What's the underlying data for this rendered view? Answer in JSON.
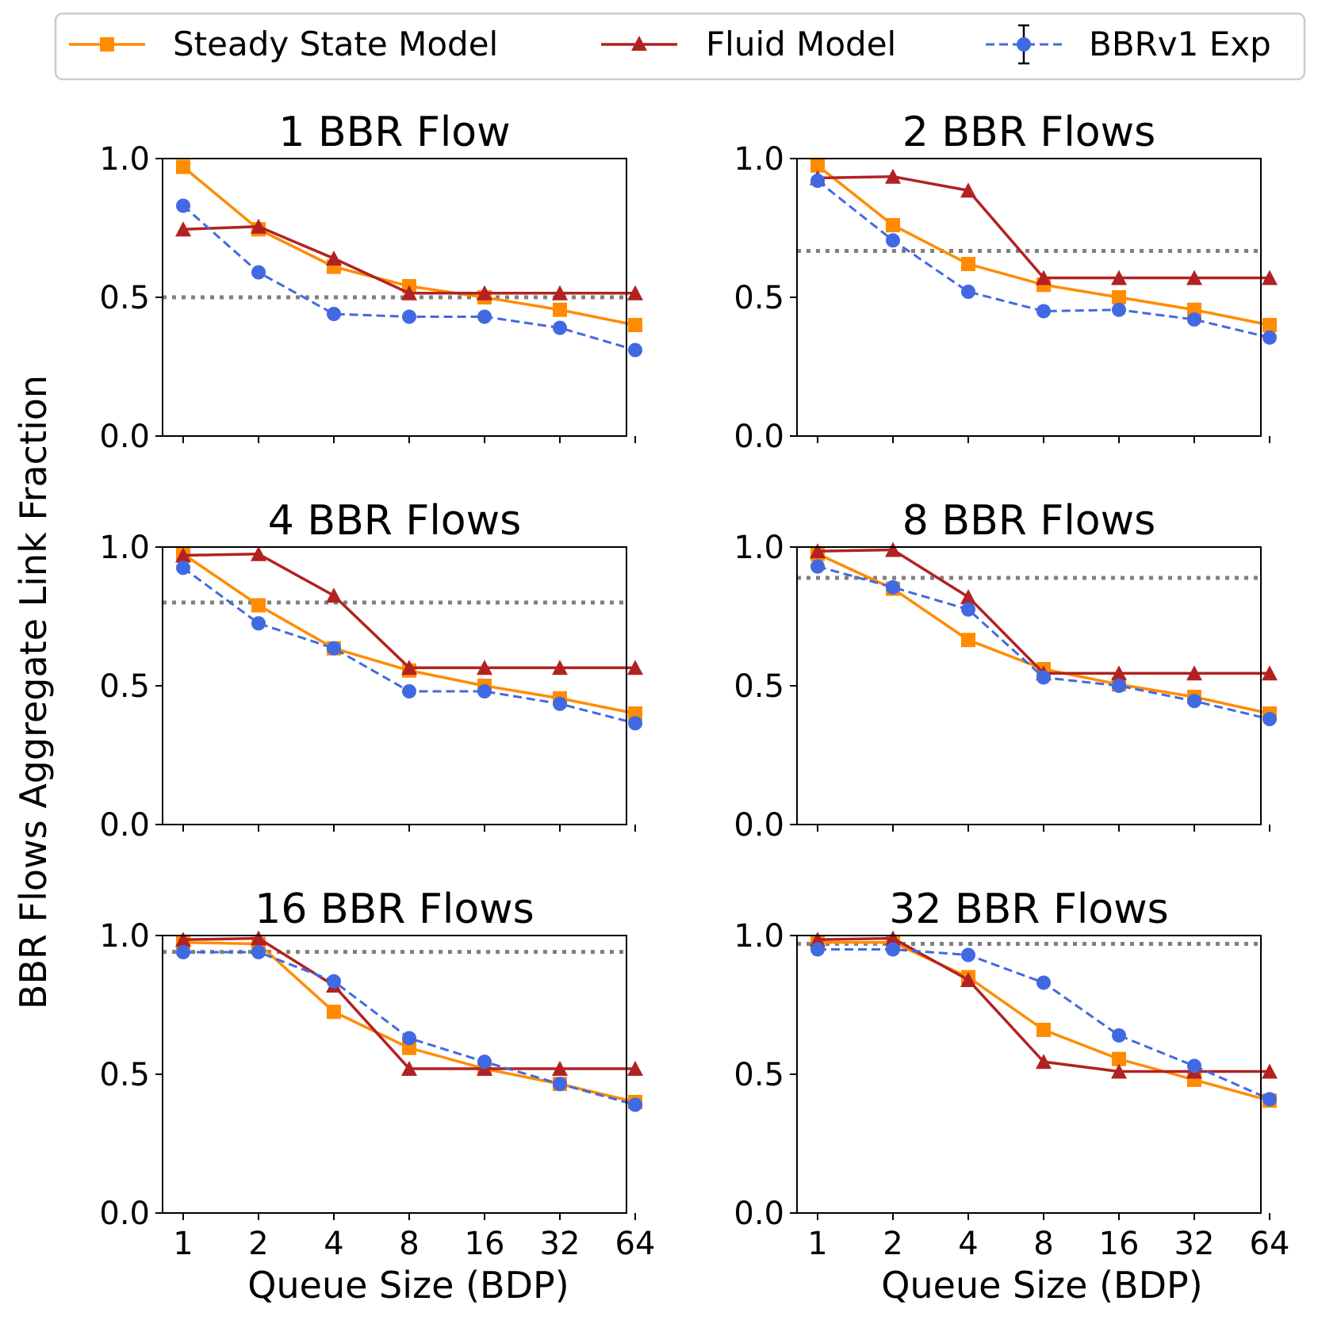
{
  "figure": {
    "ylabel": "BBR Flows Aggregate Link Fraction",
    "xlabel": "Queue Size (BDP)"
  },
  "legend": {
    "placement": "top",
    "entries": [
      {
        "key": "steady",
        "label": "Steady State Model"
      },
      {
        "key": "fluid",
        "label": "Fluid Model"
      },
      {
        "key": "bbr",
        "label": "BBRv1 Exp"
      }
    ]
  },
  "colors": {
    "steady": "#ff8c00",
    "fluid": "#b22222",
    "bbr": "#4169e1",
    "reference": "#808080"
  },
  "chart_data": [
    {
      "type": "line",
      "title": "1 BBR Flow",
      "categories": [
        "1",
        "2",
        "4",
        "8",
        "16",
        "32",
        "64"
      ],
      "ylim": [
        0,
        1
      ],
      "yticks": [
        "0.0",
        "0.5",
        "1.0"
      ],
      "reference_line": 0.5,
      "series": [
        {
          "key": "steady",
          "name": "Steady State Model",
          "values": [
            0.97,
            0.745,
            0.61,
            0.54,
            0.5,
            0.455,
            0.4
          ]
        },
        {
          "key": "fluid",
          "name": "Fluid Model",
          "values": [
            0.745,
            0.755,
            0.64,
            0.515,
            0.515,
            0.515,
            0.515
          ]
        },
        {
          "key": "bbr",
          "name": "BBRv1 Exp",
          "values": [
            0.83,
            0.59,
            0.44,
            0.43,
            0.43,
            0.39,
            0.31
          ]
        }
      ]
    },
    {
      "type": "line",
      "title": "2 BBR Flows",
      "categories": [
        "1",
        "2",
        "4",
        "8",
        "16",
        "32",
        "64"
      ],
      "ylim": [
        0,
        1
      ],
      "yticks": [
        "0.0",
        "0.5",
        "1.0"
      ],
      "reference_line": 0.667,
      "series": [
        {
          "key": "steady",
          "name": "Steady State Model",
          "values": [
            0.975,
            0.76,
            0.62,
            0.545,
            0.5,
            0.455,
            0.4
          ]
        },
        {
          "key": "fluid",
          "name": "Fluid Model",
          "values": [
            0.93,
            0.935,
            0.885,
            0.57,
            0.57,
            0.57,
            0.57
          ]
        },
        {
          "key": "bbr",
          "name": "BBRv1 Exp",
          "values": [
            0.92,
            0.705,
            0.52,
            0.45,
            0.455,
            0.42,
            0.355
          ]
        }
      ]
    },
    {
      "type": "line",
      "title": "4 BBR Flows",
      "categories": [
        "1",
        "2",
        "4",
        "8",
        "16",
        "32",
        "64"
      ],
      "ylim": [
        0,
        1
      ],
      "yticks": [
        "0.0",
        "0.5",
        "1.0"
      ],
      "reference_line": 0.8,
      "series": [
        {
          "key": "steady",
          "name": "Steady State Model",
          "values": [
            0.975,
            0.79,
            0.635,
            0.555,
            0.5,
            0.455,
            0.4
          ]
        },
        {
          "key": "fluid",
          "name": "Fluid Model",
          "values": [
            0.97,
            0.975,
            0.825,
            0.565,
            0.565,
            0.565,
            0.565
          ]
        },
        {
          "key": "bbr",
          "name": "BBRv1 Exp",
          "values": [
            0.925,
            0.725,
            0.635,
            0.48,
            0.48,
            0.435,
            0.365
          ]
        }
      ]
    },
    {
      "type": "line",
      "title": "8 BBR Flows",
      "categories": [
        "1",
        "2",
        "4",
        "8",
        "16",
        "32",
        "64"
      ],
      "ylim": [
        0,
        1
      ],
      "yticks": [
        "0.0",
        "0.5",
        "1.0"
      ],
      "reference_line": 0.889,
      "series": [
        {
          "key": "steady",
          "name": "Steady State Model",
          "values": [
            0.975,
            0.85,
            0.665,
            0.56,
            0.505,
            0.46,
            0.4
          ]
        },
        {
          "key": "fluid",
          "name": "Fluid Model",
          "values": [
            0.985,
            0.99,
            0.82,
            0.545,
            0.545,
            0.545,
            0.545
          ]
        },
        {
          "key": "bbr",
          "name": "BBRv1 Exp",
          "values": [
            0.93,
            0.855,
            0.775,
            0.53,
            0.5,
            0.445,
            0.38
          ]
        }
      ]
    },
    {
      "type": "line",
      "title": "16 BBR Flows",
      "categories": [
        "1",
        "2",
        "4",
        "8",
        "16",
        "32",
        "64"
      ],
      "ylim": [
        0,
        1
      ],
      "yticks": [
        "0.0",
        "0.5",
        "1.0"
      ],
      "reference_line": 0.941,
      "series": [
        {
          "key": "steady",
          "name": "Steady State Model",
          "values": [
            0.975,
            0.97,
            0.725,
            0.595,
            0.52,
            0.465,
            0.4
          ]
        },
        {
          "key": "fluid",
          "name": "Fluid Model",
          "values": [
            0.985,
            0.99,
            0.82,
            0.52,
            0.52,
            0.52,
            0.52
          ]
        },
        {
          "key": "bbr",
          "name": "BBRv1 Exp",
          "values": [
            0.94,
            0.94,
            0.835,
            0.63,
            0.545,
            0.465,
            0.39
          ]
        }
      ]
    },
    {
      "type": "line",
      "title": "32 BBR Flows",
      "categories": [
        "1",
        "2",
        "4",
        "8",
        "16",
        "32",
        "64"
      ],
      "ylim": [
        0,
        1
      ],
      "yticks": [
        "0.0",
        "0.5",
        "1.0"
      ],
      "reference_line": 0.97,
      "series": [
        {
          "key": "steady",
          "name": "Steady State Model",
          "values": [
            0.975,
            0.975,
            0.85,
            0.66,
            0.555,
            0.48,
            0.405
          ]
        },
        {
          "key": "fluid",
          "name": "Fluid Model",
          "values": [
            0.985,
            0.99,
            0.84,
            0.545,
            0.51,
            0.51,
            0.51
          ]
        },
        {
          "key": "bbr",
          "name": "BBRv1 Exp",
          "values": [
            0.95,
            0.95,
            0.93,
            0.83,
            0.64,
            0.53,
            0.41
          ]
        }
      ]
    }
  ]
}
